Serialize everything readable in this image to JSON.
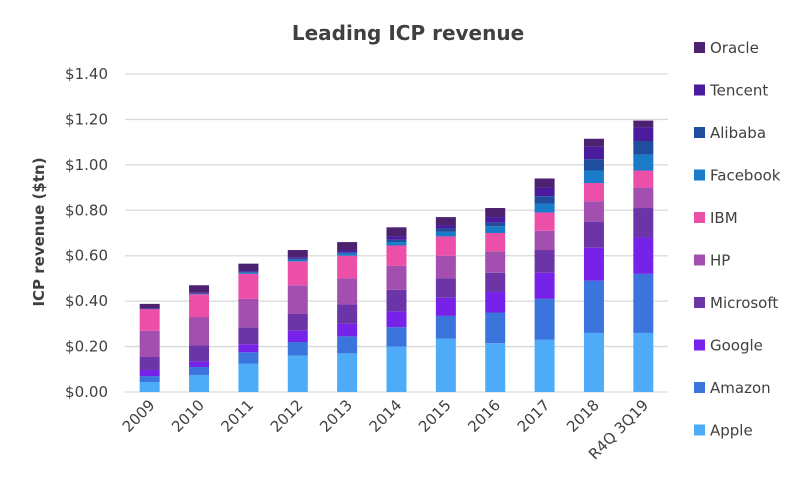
{
  "chart_data": {
    "type": "bar",
    "stacked": true,
    "title": "Leading ICP revenue",
    "xlabel": "",
    "ylabel": "ICP revenue ($tn)",
    "ylim": [
      0,
      1.4
    ],
    "ytick_step": 0.2,
    "ytick_labels": [
      "$0.00",
      "$0.20",
      "$0.40",
      "$0.60",
      "$0.80",
      "$1.00",
      "$1.20",
      "$1.40"
    ],
    "grid": true,
    "legend_position": "right",
    "categories": [
      "2009",
      "2010",
      "2011",
      "2012",
      "2013",
      "2014",
      "2015",
      "2016",
      "2017",
      "2018",
      "R4Q 3Q19"
    ],
    "series": [
      {
        "name": "Apple",
        "color": "#4DABF7",
        "values": [
          0.044,
          0.075,
          0.125,
          0.16,
          0.17,
          0.2,
          0.235,
          0.215,
          0.23,
          0.26,
          0.26
        ]
      },
      {
        "name": "Amazon",
        "color": "#3A74DC",
        "values": [
          0.026,
          0.035,
          0.05,
          0.06,
          0.075,
          0.085,
          0.1,
          0.135,
          0.18,
          0.23,
          0.26
        ]
      },
      {
        "name": "Google",
        "color": "#7722E8",
        "values": [
          0.027,
          0.025,
          0.035,
          0.05,
          0.055,
          0.07,
          0.08,
          0.09,
          0.115,
          0.145,
          0.16
        ]
      },
      {
        "name": "Microsoft",
        "color": "#6B35A8",
        "values": [
          0.057,
          0.07,
          0.075,
          0.075,
          0.085,
          0.095,
          0.085,
          0.085,
          0.1,
          0.115,
          0.13
        ]
      },
      {
        "name": "HP",
        "color": "#A24FAF",
        "values": [
          0.116,
          0.125,
          0.125,
          0.125,
          0.115,
          0.105,
          0.1,
          0.095,
          0.085,
          0.09,
          0.09
        ]
      },
      {
        "name": "IBM",
        "color": "#EC4FA8",
        "values": [
          0.096,
          0.1,
          0.11,
          0.105,
          0.1,
          0.09,
          0.085,
          0.08,
          0.08,
          0.08,
          0.075
        ]
      },
      {
        "name": "Facebook",
        "color": "#1A7BC9",
        "values": [
          0.001,
          0.002,
          0.005,
          0.008,
          0.01,
          0.015,
          0.02,
          0.03,
          0.04,
          0.055,
          0.07
        ]
      },
      {
        "name": "Alibaba",
        "color": "#1F4E9E",
        "values": [
          0.001,
          0.002,
          0.005,
          0.005,
          0.005,
          0.01,
          0.015,
          0.015,
          0.032,
          0.05,
          0.06
        ]
      },
      {
        "name": "Tencent",
        "color": "#4A1B9C",
        "values": [
          0.001,
          0.003,
          0.005,
          0.005,
          0.01,
          0.015,
          0.015,
          0.025,
          0.038,
          0.055,
          0.06
        ]
      },
      {
        "name": "Oracle",
        "color": "#4B2170",
        "values": [
          0.019,
          0.033,
          0.03,
          0.032,
          0.035,
          0.04,
          0.035,
          0.04,
          0.04,
          0.035,
          0.03
        ]
      }
    ]
  }
}
